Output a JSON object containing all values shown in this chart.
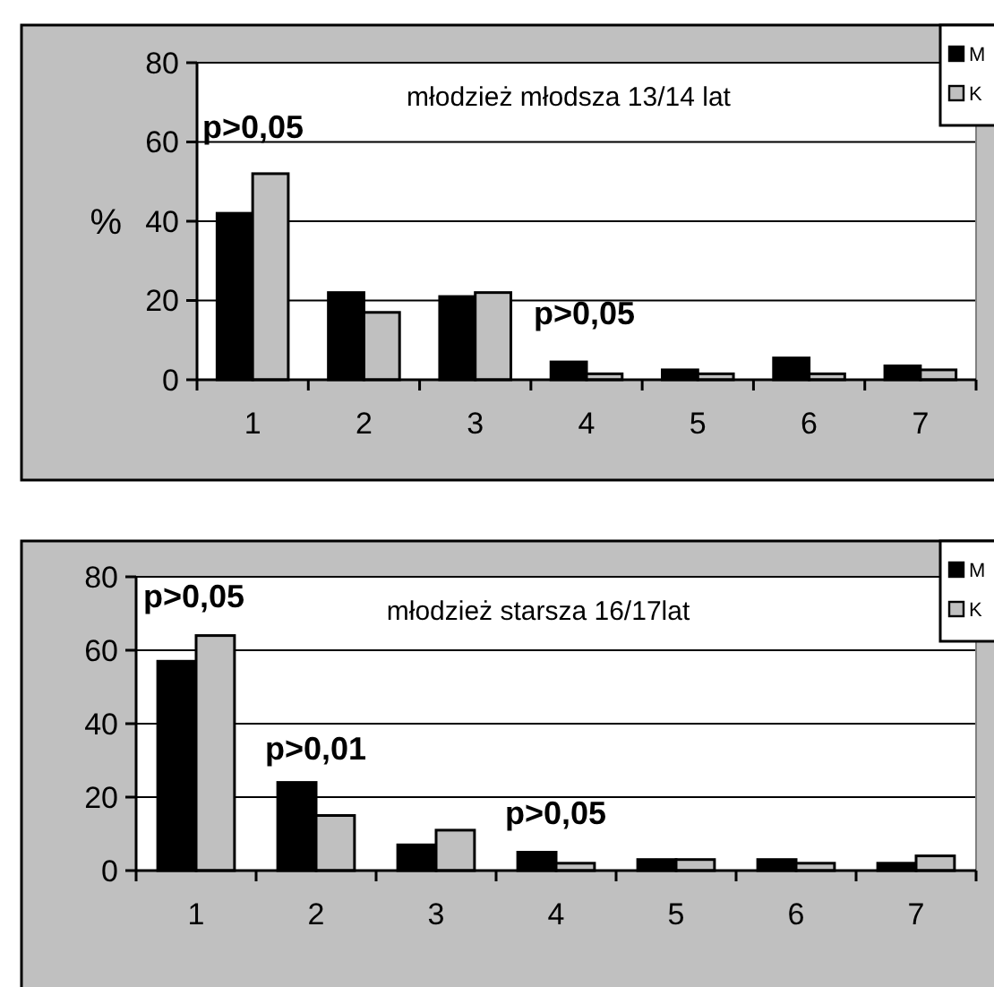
{
  "chart_data": [
    {
      "type": "bar",
      "title": "młodzież młodsza 13/14 lat",
      "ylabel": "%",
      "categories": [
        "1",
        "2",
        "3",
        "4",
        "5",
        "6",
        "7"
      ],
      "series": [
        {
          "name": "M",
          "color": "#000000",
          "values": [
            42,
            22,
            21,
            4.5,
            2.5,
            5.5,
            3.5
          ]
        },
        {
          "name": "K",
          "color": "#c0c0c0",
          "values": [
            52,
            17,
            22,
            1.5,
            1.5,
            1.5,
            2.5
          ]
        }
      ],
      "ylim": [
        0,
        80
      ],
      "yticks": [
        0,
        20,
        40,
        60,
        80
      ],
      "grid": "y",
      "legend": "top right",
      "annotations": [
        "p>0,05",
        "p>0,05"
      ]
    },
    {
      "type": "bar",
      "title": "młodzież starsza 16/17lat",
      "categories": [
        "1",
        "2",
        "3",
        "4",
        "5",
        "6",
        "7"
      ],
      "series": [
        {
          "name": "M",
          "color": "#000000",
          "values": [
            57,
            24,
            7,
            5,
            3,
            3,
            2
          ]
        },
        {
          "name": "K",
          "color": "#c0c0c0",
          "values": [
            64,
            15,
            11,
            2,
            3,
            2,
            4
          ]
        }
      ],
      "ylim": [
        0,
        80
      ],
      "yticks": [
        0,
        20,
        40,
        60,
        80
      ],
      "grid": "y",
      "legend": "top right",
      "annotations": [
        "p>0,05",
        "p>0,01",
        "p>0,05"
      ]
    }
  ]
}
